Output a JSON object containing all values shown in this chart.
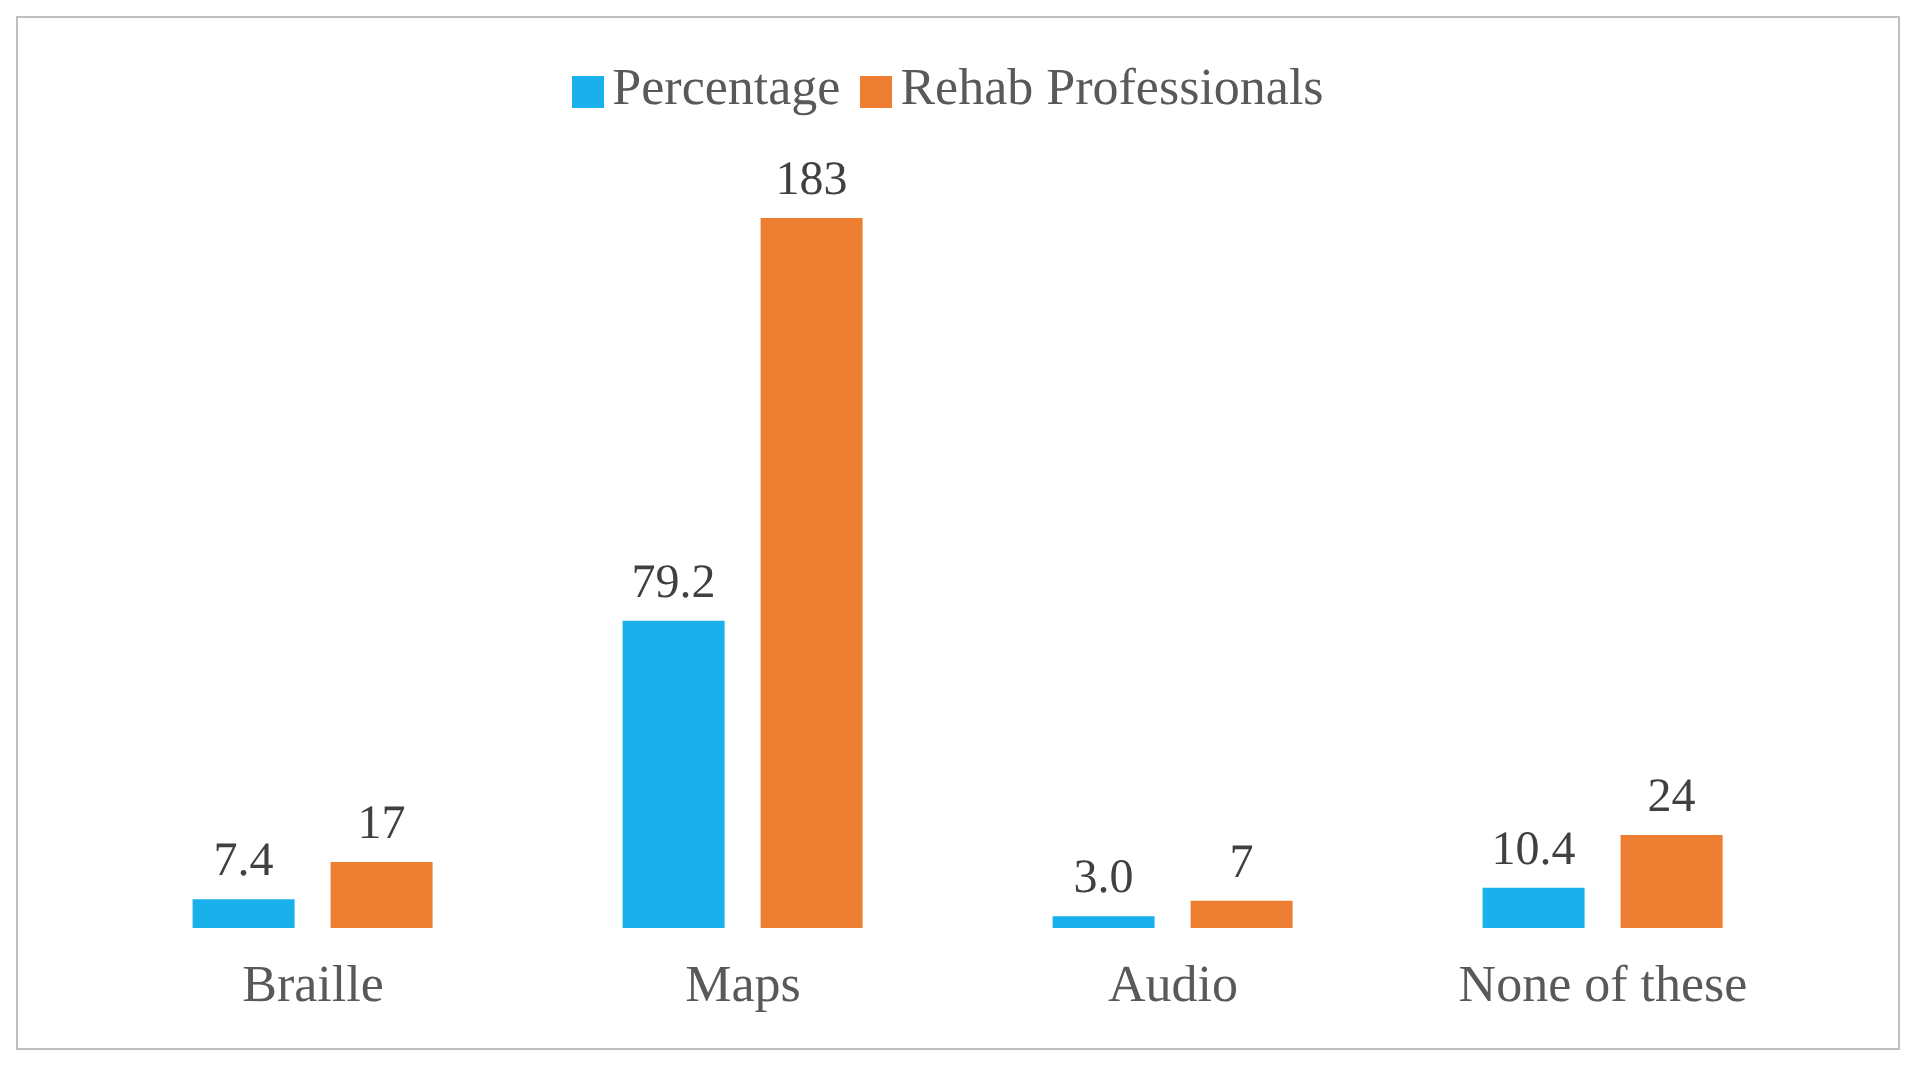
{
  "chart_data": {
    "type": "bar",
    "categories": [
      "Braille",
      "Maps",
      "Audio",
      "None of these"
    ],
    "series": [
      {
        "name": "Percentage",
        "color": "#1ab0ec",
        "values": [
          7.4,
          79.2,
          3.0,
          10.4
        ],
        "value_labels": [
          "7.4",
          "79.2",
          "3.0",
          "10.4"
        ]
      },
      {
        "name": "Rehab Professionals",
        "color": "#ed7d31",
        "values": [
          17,
          183,
          7,
          24
        ],
        "value_labels": [
          "17",
          "183",
          "7",
          "24"
        ]
      }
    ],
    "legend": "top",
    "grid": false
  }
}
